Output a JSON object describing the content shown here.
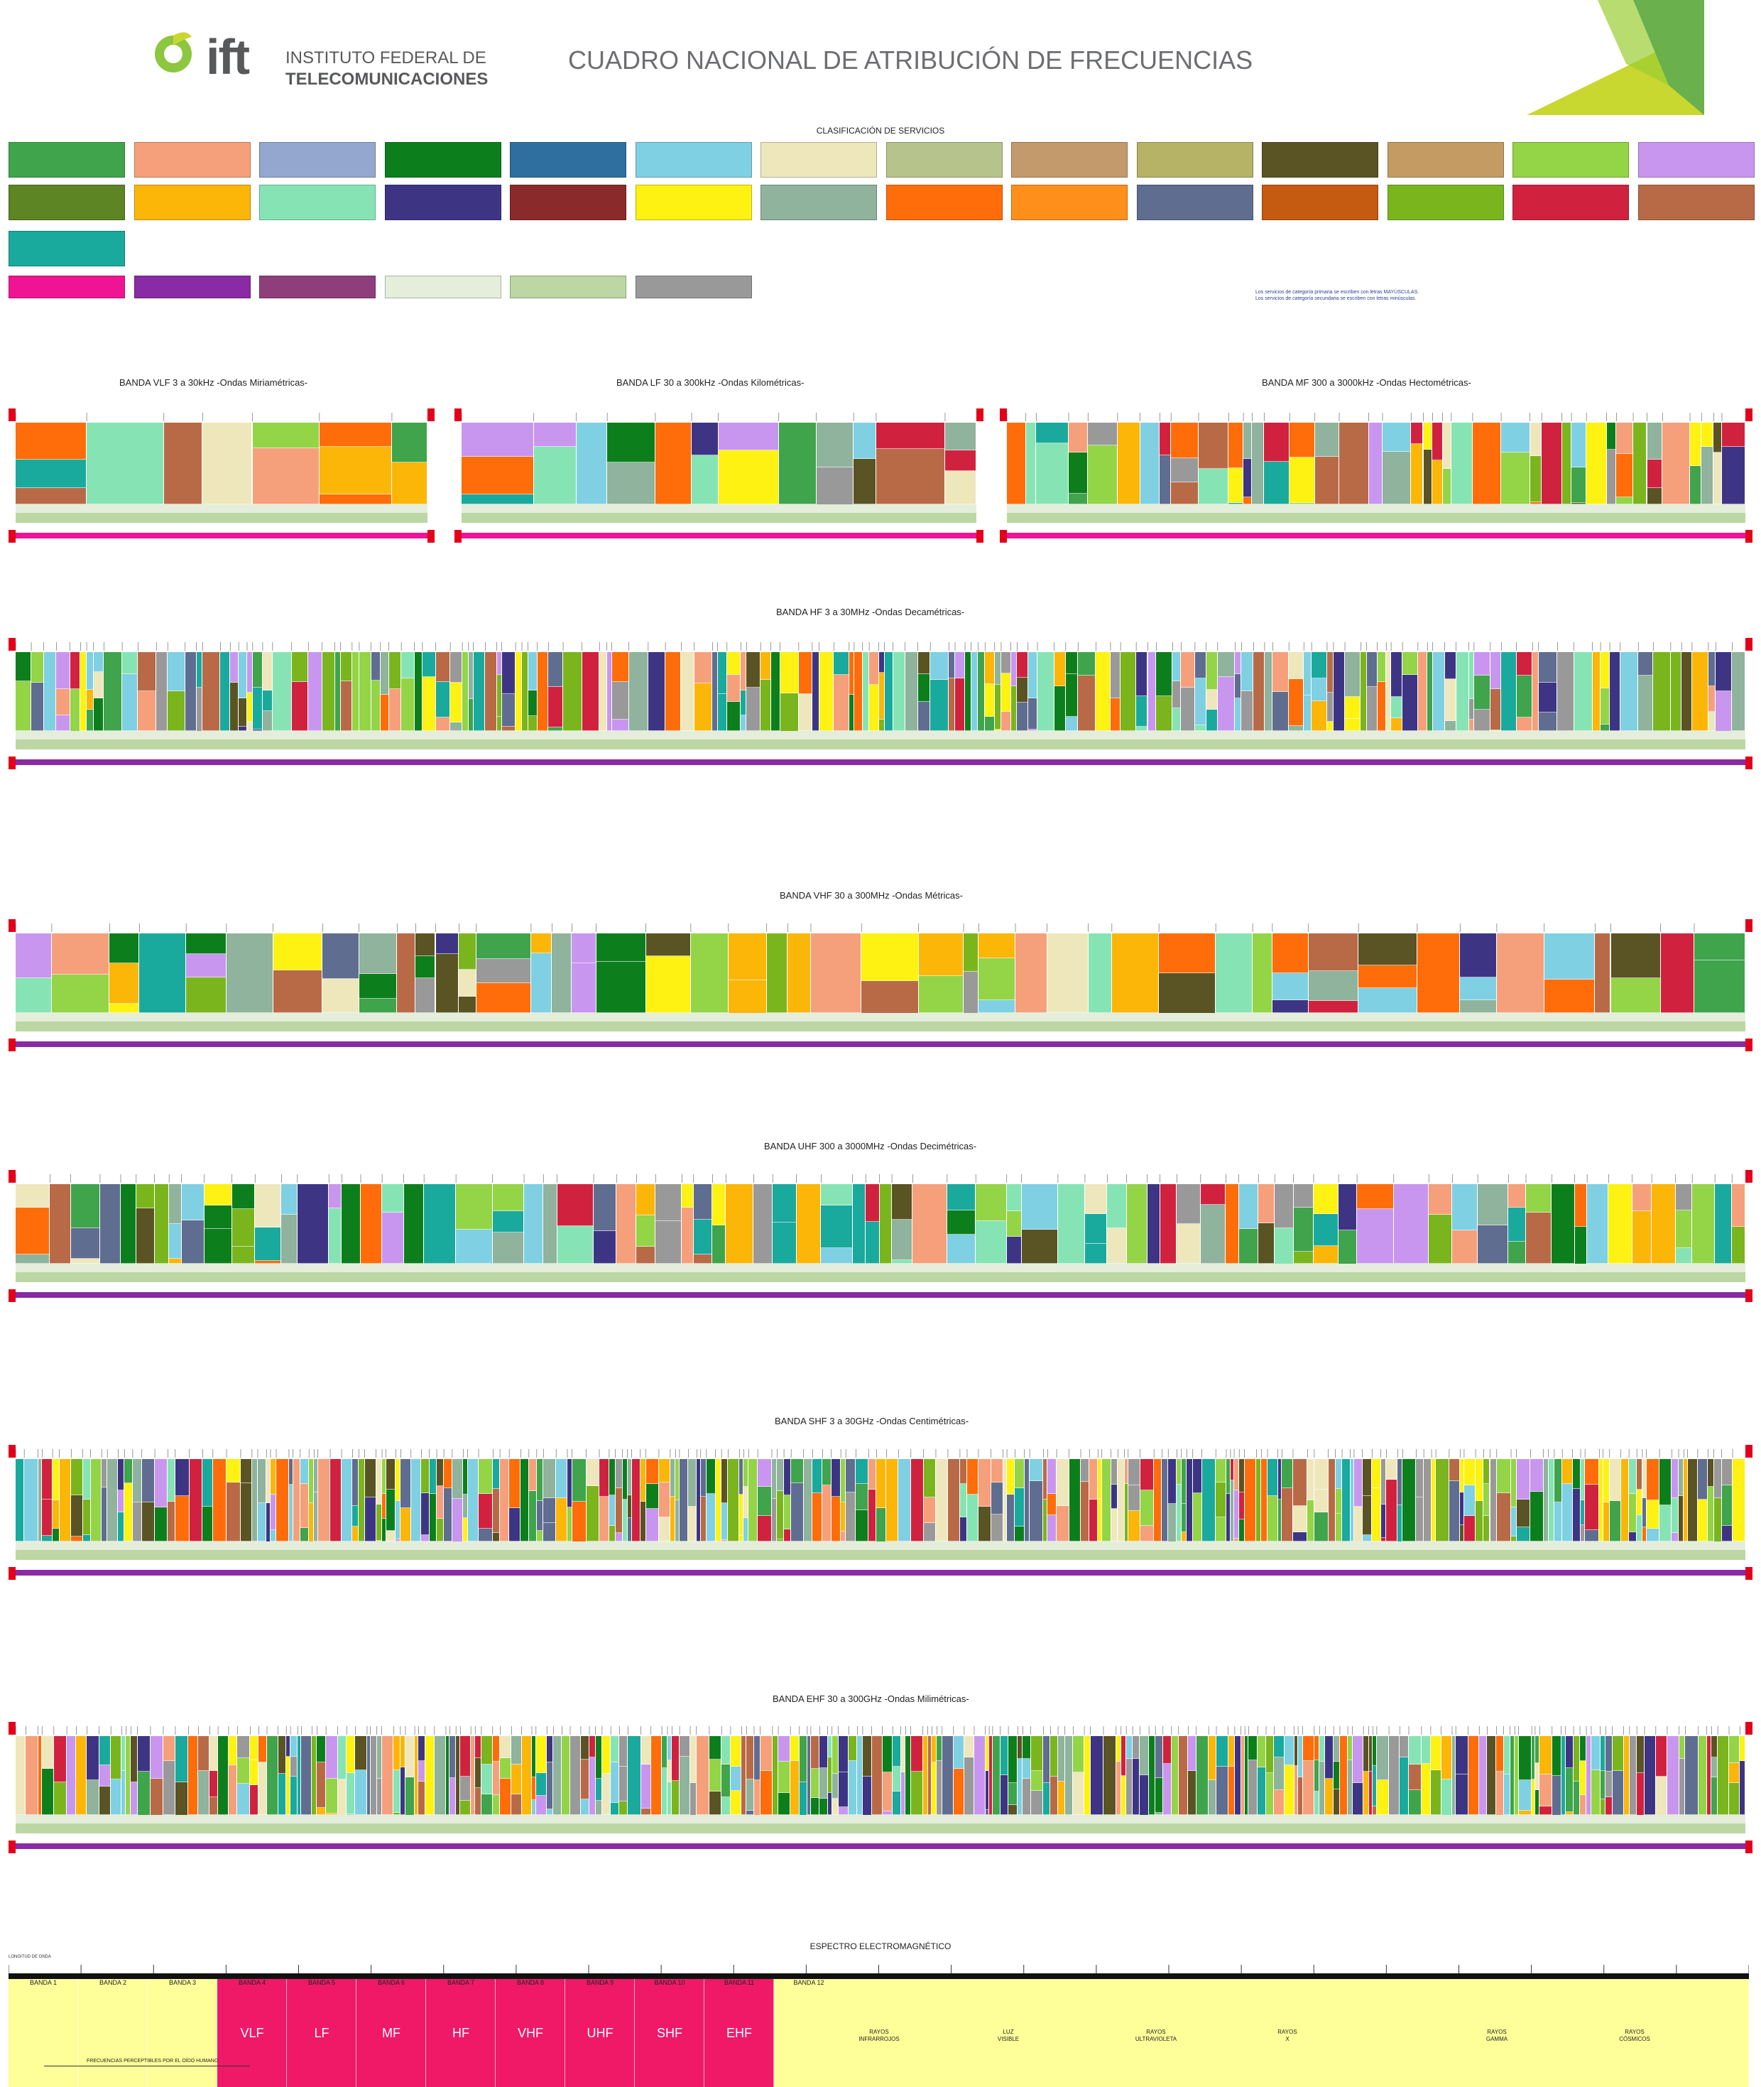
{
  "header": {
    "logo_text": "ift",
    "institute_line1": "INSTITUTO FEDERAL DE",
    "institute_line2": "TELECOMUNICACIONES",
    "title": "CUADRO NACIONAL DE ATRIBUCIÓN DE FRECUENCIAS"
  },
  "legend": {
    "title": "CLASIFICACIÓN DE SERVICIOS",
    "note_line1": "Los servicios de categoría primaria se escriben con letras MAYÚSCULAS.",
    "note_line2": "Los servicios de categoría secundaria se escriben con letras minúsculas.",
    "colors": [
      "#3fa44b",
      "#f6a07b",
      "#94a7cf",
      "#0c7f1c",
      "#2f6fa0",
      "#7fd0e3",
      "#eee7bc",
      "#b6c48c",
      "#c39a6b",
      "#b7b366",
      "#5a5323",
      "#c49b62",
      "#94d447",
      "#c996ef",
      "#5d8523",
      "#fbb608",
      "#86e4b4",
      "#3d3584",
      "#8b2a2a",
      "#fdf212",
      "#8fb39c",
      "#fe6d09",
      "#fe8f1b",
      "#5f6d90",
      "#c55a11",
      "#7ab51d",
      "#d0223f",
      "#b86a47",
      "#1aa99d",
      "#ef1493",
      "#8a2aa4",
      "#8e3e7b",
      "#e4eedb",
      "#bcd7a3",
      "#999999"
    ]
  },
  "bands": {
    "vlf": "BANDA VLF 3 a 30kHz -Ondas Miriamétricas-",
    "lf": "BANDA LF 30 a 300kHz -Ondas Kilométricas-",
    "mf": "BANDA MF 300 a 3000kHz -Ondas Hectométricas-",
    "hf": "BANDA HF 3 a 30MHz -Ondas Decamétricas-",
    "vhf": "BANDA VHF 30 a 300MHz -Ondas Métricas-",
    "uhf": "BANDA UHF 300 a 3000MHz -Ondas Decimétricas-",
    "shf": "BANDA SHF 3 a 30GHz -Ondas Centimétricas-",
    "ehf": "BANDA EHF 30 a 300GHz -Ondas Milimétricas-"
  },
  "spectrum": {
    "title": "ESPECTRO ELECTROMAGNÉTICO",
    "ruler_label": "LONGITUD DE ONDA",
    "band_labels": [
      "BANDA 1",
      "BANDA 2",
      "BANDA 3",
      "BANDA 4",
      "BANDA 5",
      "BANDA 6",
      "BANDA 7",
      "BANDA 8",
      "BANDA 9",
      "BANDA 10",
      "BANDA 11",
      "BANDA 12"
    ],
    "big_labels": [
      "VLF",
      "LF",
      "MF",
      "HF",
      "VHF",
      "UHF",
      "SHF",
      "EHF"
    ],
    "rays": [
      {
        "l1": "RAYOS",
        "l2": "INFRARROJOS"
      },
      {
        "l1": "LUZ",
        "l2": "VISIBLE"
      },
      {
        "l1": "RAYOS",
        "l2": "ULTRAVIOLETA"
      },
      {
        "l1": "RAYOS",
        "l2": "X"
      },
      {
        "l1": "RAYOS",
        "l2": "GAMMA"
      },
      {
        "l1": "RAYOS",
        "l2": "CÓSMICOS"
      }
    ],
    "hearing_label": "FRECUENCIAS PERCEPTIBLES POR EL OÍDO HUMANO"
  }
}
